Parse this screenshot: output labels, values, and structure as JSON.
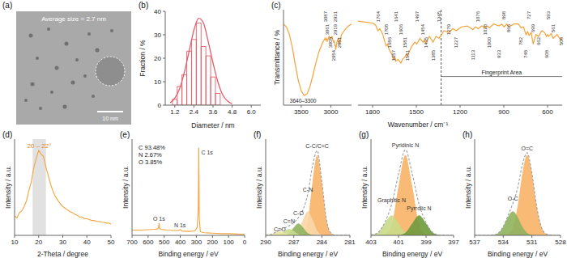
{
  "chart_data": [
    {
      "panel": "(a)",
      "type": "image",
      "annotations": [
        "Average size = 2.7 nm",
        "10 nm"
      ]
    },
    {
      "panel": "(b)",
      "type": "histogram",
      "x_label": "Diameter / nm",
      "y_label": "Fraction / %",
      "color": "#e35d6a",
      "bins": [
        1.05,
        1.35,
        1.65,
        1.95,
        2.25,
        2.55,
        2.85,
        3.15,
        3.45,
        3.75,
        4.05
      ],
      "counts": [
        2.5,
        8,
        13,
        23,
        28,
        35,
        25,
        21,
        12,
        5
      ],
      "fit": {
        "x": [
          0.9,
          1.2,
          1.5,
          1.8,
          2.1,
          2.4,
          2.7,
          3.0,
          3.3,
          3.6,
          3.9,
          4.2,
          4.5,
          4.8
        ],
        "values": [
          1,
          3,
          7,
          14,
          23,
          32,
          37,
          35,
          27,
          18,
          10,
          4.5,
          1.8,
          0.6
        ]
      },
      "xlim": [
        0.6,
        6.6
      ],
      "xticks": [
        1.2,
        2.4,
        3.6,
        4.8,
        {
          "value": 6,
          "label": "6.0"
        }
      ],
      "ylim": [
        0,
        40
      ],
      "yticks": [
        0,
        10,
        20,
        30,
        40
      ]
    },
    {
      "panel": "(c)",
      "type": "line",
      "x_label": "Wavenumber / cm⁻¹",
      "y_label": "Transmittance / %",
      "color": "#f5a33a",
      "tick_labels": "x",
      "ylim": [
        0,
        100
      ],
      "segments": [
        {
          "xlim": [
            3800,
            2650
          ],
          "xticks": [
            3500,
            3000
          ],
          "x": [
            3800,
            3750,
            3700,
            3650,
            3600,
            3550,
            3500,
            3450,
            3400,
            3350,
            3300,
            3250,
            3200,
            3150,
            3100,
            3087,
            3075,
            3061,
            3030,
            3005,
            2980,
            2954,
            2940,
            2931,
            2925,
            2919,
            2890,
            2870,
            2851,
            2820,
            2750,
            2700,
            2650
          ],
          "values": [
            85,
            82,
            74,
            60,
            42,
            26,
            15,
            10,
            12,
            20,
            32,
            45,
            56,
            64,
            70,
            68,
            70,
            67,
            72,
            70,
            72,
            66,
            67,
            62,
            63,
            58,
            68,
            70,
            64,
            74,
            80,
            83,
            85
          ]
        },
        {
          "xlim": [
            1900,
            500
          ],
          "xticks": [
            1800,
            1500,
            1200,
            900,
            600
          ],
          "x": [
            1900,
            1850,
            1800,
            1780,
            1764,
            1750,
            1730,
            1708,
            1697,
            1686,
            1670,
            1657,
            1648,
            1641,
            1625,
            1606,
            1595,
            1581,
            1570,
            1561,
            1530,
            1510,
            1497,
            1475,
            1454,
            1445,
            1435,
            1410,
            1385,
            1365,
            1345,
            1310,
            1279,
            1250,
            1227,
            1190,
            1150,
            1113,
            1095,
            1076,
            1050,
            1028,
            1012,
            1000,
            970,
            933,
            915,
            898,
            880,
            866,
            830,
            800,
            782,
            765,
            748,
            737,
            727,
            712,
            699,
            680,
            662,
            640,
            620,
            608,
            600,
            593,
            575,
            561,
            535,
            508,
            500
          ],
          "values": [
            88,
            87,
            86,
            84,
            78,
            80,
            74,
            62,
            64,
            58,
            54,
            48,
            50,
            46,
            48,
            44,
            48,
            50,
            53,
            52,
            62,
            66,
            64,
            70,
            66,
            68,
            65,
            72,
            66,
            72,
            70,
            78,
            76,
            80,
            78,
            82,
            83,
            79,
            82,
            80,
            83,
            81,
            83,
            81,
            85,
            83,
            85,
            82,
            85,
            82,
            85,
            85,
            81,
            82,
            74,
            77,
            73,
            76,
            64,
            74,
            72,
            78,
            76,
            72,
            74,
            72,
            75,
            70,
            74,
            68,
            70
          ]
        }
      ],
      "peak_labels": [
        3087,
        3061,
        3005,
        2954,
        2931,
        2919,
        2851,
        1764,
        1708,
        1686,
        1657,
        1641,
        1606,
        1581,
        1561,
        1497,
        1454,
        1435,
        1385,
        1345,
        1279,
        1227,
        1113,
        1076,
        1028,
        1000,
        933,
        898,
        866,
        782,
        748,
        727,
        699,
        662,
        608,
        593,
        561,
        508
      ],
      "range_label": {
        "label": "3640–3300",
        "range": [
          3640,
          3300
        ]
      },
      "fingerprint": {
        "label": "Fingerprint Area",
        "range": [
          1330,
          500
        ]
      }
    },
    {
      "panel": "(d)",
      "type": "line",
      "x_label": "2-Theta / degree",
      "y_label": "Intensity / a.u.",
      "color": "#f5a33a",
      "tick_labels": "x",
      "annotation": "20 – 22°",
      "band": [
        17.5,
        23
      ],
      "x": [
        10,
        11,
        12,
        13,
        14,
        15,
        16,
        17,
        18,
        19,
        20,
        21,
        22,
        23,
        24,
        25,
        26,
        27,
        28,
        29,
        30,
        31,
        32,
        33,
        34,
        35,
        36,
        37,
        38,
        39,
        40,
        41,
        42,
        43,
        44,
        45,
        46,
        47,
        48,
        49,
        50
      ],
      "values": [
        22,
        20,
        26,
        28,
        33,
        40,
        52,
        62,
        78,
        88,
        97,
        93,
        90,
        78,
        68,
        58,
        50,
        44,
        40,
        36,
        33,
        31,
        29,
        27,
        26,
        24,
        23,
        21,
        21,
        19,
        19,
        18,
        17,
        17,
        16,
        16,
        15,
        15,
        14,
        14,
        13
      ],
      "xlim": [
        10,
        50
      ],
      "xticks": [
        10,
        20,
        30,
        40,
        50
      ],
      "ylim": [
        0,
        110
      ]
    },
    {
      "panel": "(e)",
      "type": "line",
      "x_label": "Binding energy / eV",
      "y_label": "Intensity / a.u.",
      "color": "#f5a33a",
      "tick_labels": "x",
      "composition": [
        "C 93.48%",
        "N 2.67%",
        "O 3.85%"
      ],
      "peak_labels": [
        {
          "x": 532,
          "label": "O 1s"
        },
        {
          "x": 400,
          "label": "N 1s"
        },
        {
          "x": 285,
          "label": "C 1s"
        }
      ],
      "x": [
        700,
        650,
        600,
        560,
        540,
        535,
        532,
        529,
        520,
        480,
        440,
        410,
        402,
        398,
        390,
        350,
        310,
        295,
        288,
        285,
        282,
        275,
        250,
        200,
        150,
        100,
        50,
        0
      ],
      "values": [
        6,
        6,
        6.5,
        7,
        7.5,
        9,
        14,
        8,
        7,
        6,
        5.5,
        5.5,
        6.5,
        6.5,
        5,
        4.5,
        5,
        9,
        30,
        100,
        20,
        4,
        3,
        2.5,
        2,
        2,
        1.5,
        1
      ],
      "xlim": [
        700,
        0
      ],
      "xticks": [
        700,
        600,
        500,
        400,
        300,
        200,
        100,
        0
      ],
      "ylim": [
        0,
        110
      ]
    },
    {
      "panel": "(f)",
      "type": "line",
      "x_label": "Binding energy / eV",
      "y_label": "Intensity / a.u.",
      "tick_labels": "x",
      "x": [
        290,
        289.5,
        289,
        288.5,
        288,
        287.5,
        287,
        286.5,
        286,
        285.5,
        285,
        284.5,
        284,
        283.5,
        283,
        282.5,
        282,
        281.5,
        281
      ],
      "series": [
        {
          "name": "C-C/C=C",
          "type": "area",
          "color": "#f7b266",
          "values": [
            0,
            0,
            0,
            0,
            0,
            0,
            0,
            0,
            2.4,
            19,
            66,
            100,
            66,
            19,
            2.4,
            0,
            0,
            0,
            0
          ]
        },
        {
          "name": "C-N",
          "type": "area",
          "color": "#fad7a8",
          "values": [
            0,
            0,
            0,
            0,
            0,
            0,
            0.7,
            5.7,
            19.8,
            30,
            19.8,
            5.7,
            0.7,
            0,
            0,
            0,
            0,
            0,
            0
          ]
        },
        {
          "name": "C-O",
          "type": "area",
          "color": "#8fb35e",
          "values": [
            0,
            0,
            0,
            0,
            0.4,
            2.9,
            9.9,
            15,
            9.9,
            2.9,
            0.4,
            0,
            0,
            0,
            0,
            0,
            0,
            0,
            0
          ]
        },
        {
          "name": "C=N",
          "type": "area",
          "color": "#c9dc8a",
          "values": [
            0,
            0,
            0.2,
            1.5,
            5.3,
            8,
            5.3,
            1.5,
            0.2,
            0,
            0,
            0,
            0,
            0,
            0,
            0,
            0,
            0,
            0
          ]
        },
        {
          "name": "C=O",
          "type": "area",
          "color": "#e9e3a0",
          "values": [
            0.1,
            1,
            3.3,
            5,
            3.3,
            1,
            0.1,
            0,
            0,
            0,
            0,
            0,
            0,
            0,
            0,
            0,
            0,
            0,
            0
          ]
        },
        {
          "type": "line",
          "line_style": "dashed",
          "color": "#9e9e9e",
          "values": [
            0.1,
            1,
            3.5,
            6.5,
            9,
            11.9,
            16,
            22.2,
            32.3,
            51.9,
            86.2,
            105.7,
            66.7,
            19,
            2.4,
            0,
            0,
            0,
            0
          ]
        }
      ],
      "xlim": [
        290,
        281
      ],
      "xticks": [
        290,
        287,
        284,
        281
      ],
      "ylim": [
        0,
        120
      ]
    },
    {
      "panel": "(g)",
      "type": "line",
      "x_label": "Binding energy / eV",
      "y_label": "Intensity / a.u.",
      "tick_labels": "x",
      "x": [
        403,
        402.5,
        402,
        401.5,
        401,
        400.5,
        400,
        399.5,
        399,
        398.5,
        398,
        397.5,
        397
      ],
      "series": [
        {
          "name": "Pyridinic N",
          "type": "area",
          "color": "#f7b266",
          "values": [
            0,
            0,
            1.1,
            13.5,
            61,
            100,
            61,
            13.5,
            1.1,
            0,
            0,
            0,
            0
          ]
        },
        {
          "name": "Graphitic N",
          "type": "area",
          "color": "#c9dc8a",
          "values": [
            0.3,
            3.4,
            15,
            25,
            15,
            3.4,
            0.3,
            0,
            0,
            0,
            0,
            0,
            0
          ]
        },
        {
          "name": "Pyrrolic N",
          "type": "area",
          "color": "#6e9a3c",
          "values": [
            0,
            0,
            0,
            0,
            0.3,
            3.4,
            15,
            25,
            15,
            3.4,
            0.3,
            0,
            0
          ]
        },
        {
          "type": "line",
          "line_style": "dashed",
          "color": "#9e9e9e",
          "values": [
            0.3,
            3.4,
            16.1,
            38.5,
            76.3,
            106.8,
            76.3,
            38.5,
            16.1,
            3.4,
            0.3,
            0,
            0
          ]
        }
      ],
      "xlim": [
        403,
        397
      ],
      "xticks": [
        403,
        401,
        399,
        397
      ],
      "ylim": [
        0,
        120
      ]
    },
    {
      "panel": "(h)",
      "type": "line",
      "x_label": "Binding energy / eV",
      "y_label": "Intensity / a.u.",
      "tick_labels": "x",
      "x": [
        537,
        536.5,
        536,
        535.5,
        535,
        534.5,
        534,
        533.5,
        533,
        532.5,
        532,
        531.5,
        531,
        530.5,
        530,
        529.5,
        529,
        528.5,
        528
      ],
      "series": [
        {
          "name": "O=C",
          "type": "area",
          "color": "#f7b266",
          "values": [
            0,
            0,
            0,
            0,
            0,
            0,
            0.2,
            1.7,
            10,
            36,
            77,
            100,
            77,
            36,
            10,
            1.7,
            0.2,
            0,
            0
          ]
        },
        {
          "name": "O-C",
          "type": "area",
          "color": "#8fb35e",
          "values": [
            0,
            0,
            0,
            0,
            0.5,
            3,
            10.8,
            23,
            30,
            23,
            10.8,
            3,
            0.5,
            0,
            0,
            0,
            0,
            0,
            0
          ]
        },
        {
          "type": "line",
          "line_style": "dashed",
          "color": "#9e9e9e",
          "values": [
            0,
            0,
            0,
            0,
            0.5,
            3,
            11,
            24.7,
            40,
            59,
            87.8,
            103,
            77.5,
            36,
            10,
            1.7,
            0.2,
            0,
            0
          ]
        }
      ],
      "xlim": [
        537,
        528
      ],
      "xticks": [
        537,
        534,
        531,
        528
      ],
      "ylim": [
        0,
        120
      ]
    }
  ]
}
